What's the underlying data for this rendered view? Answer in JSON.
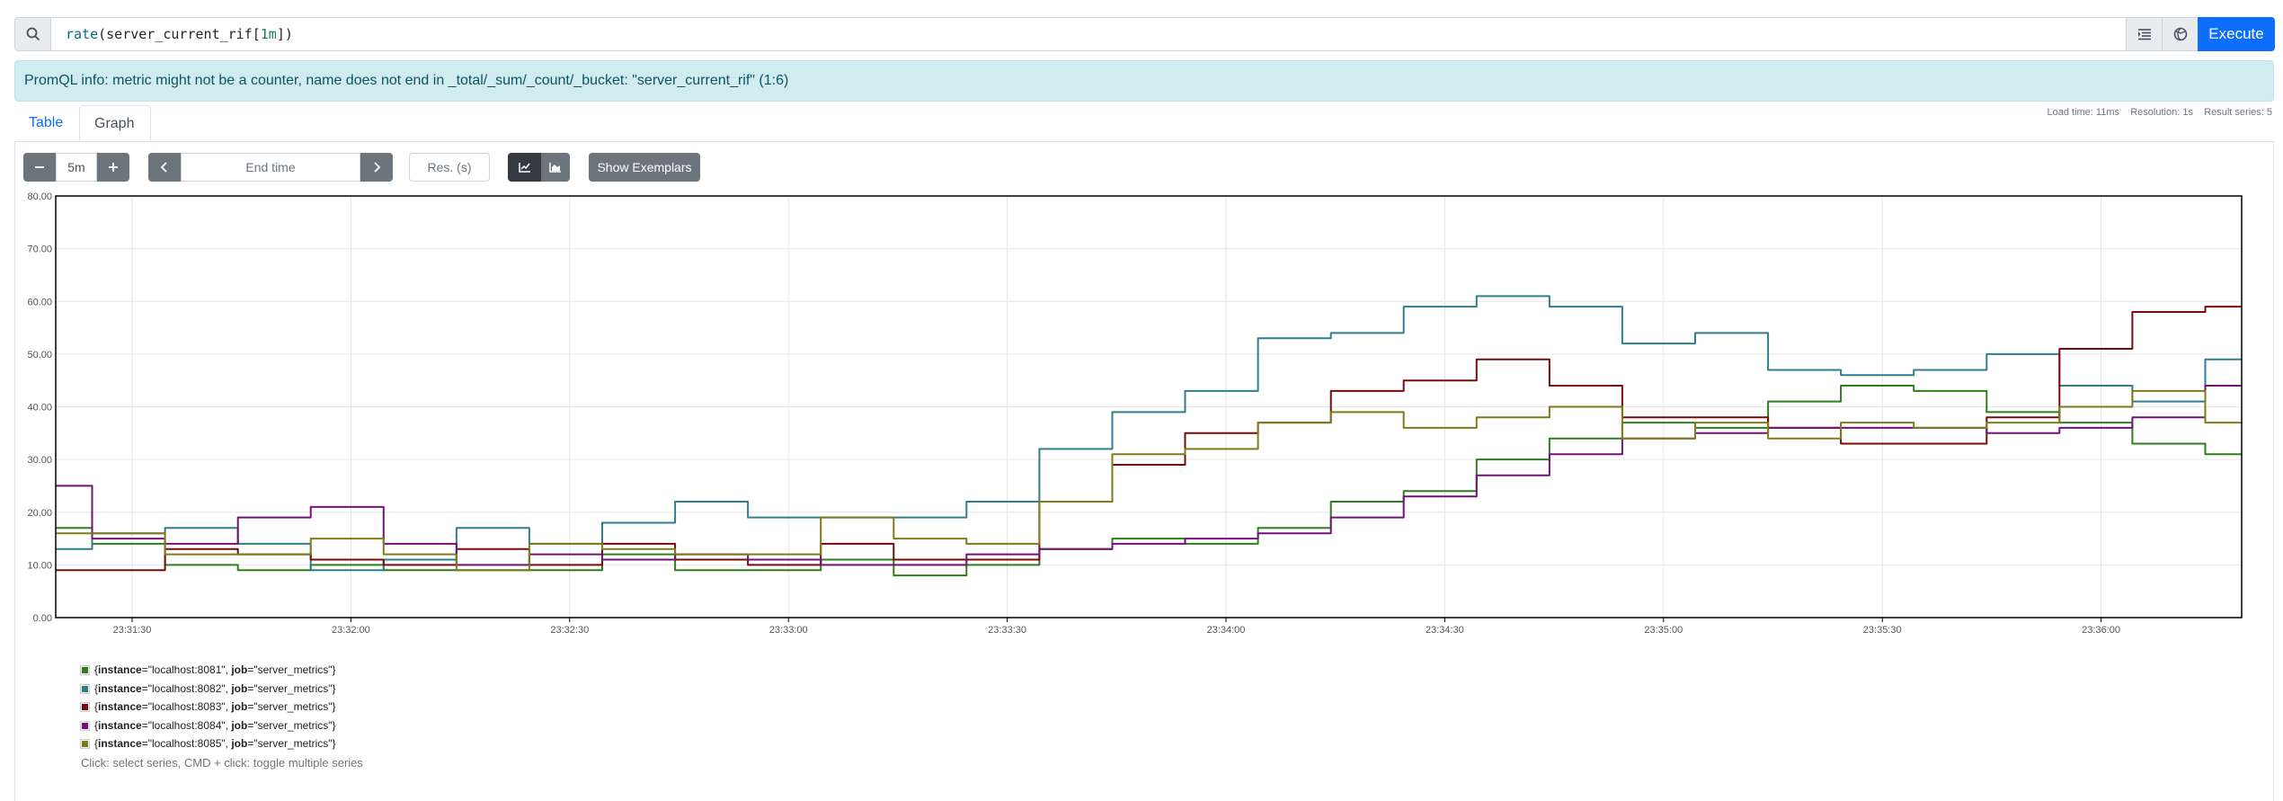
{
  "query": {
    "fn": "rate",
    "metric": "server_current_rif",
    "range": "1m",
    "execute_label": "Execute"
  },
  "alert": {
    "text": "PromQL info: metric might not be a counter, name does not end in _total/_sum/_count/_bucket: \"server_current_rif\" (1:6)"
  },
  "tabs": [
    {
      "label": "Table"
    },
    {
      "label": "Graph"
    }
  ],
  "stats": {
    "load_time": "Load time: 11ms",
    "resolution": "Resolution: 1s",
    "result_series": "Result series: 5"
  },
  "controls": {
    "range_value": "5m",
    "end_time_placeholder": "End time",
    "res_placeholder": "Res. (s)",
    "show_exemplars": "Show Exemplars"
  },
  "legend": {
    "items": [
      {
        "instance": "localhost:8081",
        "job": "server_metrics",
        "color": "#2f7d1c"
      },
      {
        "instance": "localhost:8082",
        "job": "server_metrics",
        "color": "#2f7f8a"
      },
      {
        "instance": "localhost:8083",
        "job": "server_metrics",
        "color": "#7a0a0a"
      },
      {
        "instance": "localhost:8084",
        "job": "server_metrics",
        "color": "#75107a"
      },
      {
        "instance": "localhost:8085",
        "job": "server_metrics",
        "color": "#7f7a1a"
      }
    ],
    "hint": "Click: select series, CMD + click: toggle multiple series"
  },
  "chart_data": {
    "type": "line",
    "x_ticks": [
      "23:31:30",
      "23:32:00",
      "23:32:30",
      "23:33:00",
      "23:33:30",
      "23:34:00",
      "23:34:30",
      "23:35:00",
      "23:35:30",
      "23:36:00"
    ],
    "y_ticks": [
      "0.00",
      "10.00",
      "20.00",
      "30.00",
      "40.00",
      "50.00",
      "60.00",
      "70.00",
      "80.00"
    ],
    "ylim": [
      0,
      80
    ],
    "x_range_seconds": [
      0,
      300
    ],
    "grid": true,
    "series": [
      {
        "name": "{instance=\"localhost:8081\", job=\"server_metrics\"}",
        "x": [
          0,
          10,
          20,
          30,
          40,
          50,
          60,
          70,
          80,
          90,
          100,
          110,
          120,
          130,
          140,
          150,
          160,
          170,
          180,
          190,
          200,
          210,
          220,
          230,
          240,
          250,
          260,
          270,
          280,
          290,
          300
        ],
        "values": [
          17,
          14,
          10,
          9,
          10,
          9,
          9,
          9,
          12,
          9,
          9,
          11,
          8,
          10,
          13,
          15,
          14,
          17,
          22,
          24,
          30,
          34,
          37,
          36,
          41,
          44,
          43,
          39,
          37,
          33,
          31
        ]
      },
      {
        "name": "{instance=\"localhost:8082\", job=\"server_metrics\"}",
        "x": [
          0,
          10,
          20,
          30,
          40,
          50,
          60,
          70,
          80,
          90,
          100,
          110,
          120,
          130,
          140,
          150,
          160,
          170,
          180,
          190,
          200,
          210,
          220,
          230,
          240,
          250,
          260,
          270,
          280,
          290,
          300
        ],
        "values": [
          13,
          16,
          17,
          14,
          9,
          11,
          17,
          14,
          18,
          22,
          19,
          19,
          19,
          22,
          32,
          39,
          43,
          53,
          54,
          59,
          61,
          59,
          52,
          54,
          47,
          46,
          47,
          50,
          44,
          41,
          49
        ]
      },
      {
        "name": "{instance=\"localhost:8083\", job=\"server_metrics\"}",
        "x": [
          0,
          10,
          20,
          30,
          40,
          50,
          60,
          70,
          80,
          90,
          100,
          110,
          120,
          130,
          140,
          150,
          160,
          170,
          180,
          190,
          200,
          210,
          220,
          230,
          240,
          250,
          260,
          270,
          280,
          290,
          300
        ],
        "values": [
          9,
          9,
          13,
          12,
          11,
          10,
          13,
          10,
          14,
          11,
          10,
          14,
          11,
          11,
          22,
          29,
          35,
          37,
          43,
          45,
          49,
          44,
          38,
          38,
          36,
          33,
          33,
          38,
          51,
          58,
          59
        ]
      },
      {
        "name": "{instance=\"localhost:8084\", job=\"server_metrics\"}",
        "x": [
          0,
          10,
          20,
          30,
          40,
          50,
          60,
          70,
          80,
          90,
          100,
          110,
          120,
          130,
          140,
          150,
          160,
          170,
          180,
          190,
          200,
          210,
          220,
          230,
          240,
          250,
          260,
          270,
          280,
          290,
          300
        ],
        "values": [
          25,
          15,
          14,
          19,
          21,
          14,
          10,
          12,
          11,
          12,
          11,
          10,
          10,
          12,
          13,
          14,
          15,
          16,
          19,
          23,
          27,
          31,
          34,
          35,
          36,
          36,
          36,
          35,
          36,
          38,
          44
        ]
      },
      {
        "name": "{instance=\"localhost:8085\", job=\"server_metrics\"}",
        "x": [
          0,
          10,
          20,
          30,
          40,
          50,
          60,
          70,
          80,
          90,
          100,
          110,
          120,
          130,
          140,
          150,
          160,
          170,
          180,
          190,
          200,
          210,
          220,
          230,
          240,
          250,
          260,
          270,
          280,
          290,
          300
        ],
        "values": [
          16,
          16,
          12,
          12,
          15,
          12,
          9,
          14,
          13,
          12,
          12,
          19,
          15,
          14,
          22,
          31,
          32,
          37,
          39,
          36,
          38,
          40,
          34,
          37,
          34,
          37,
          36,
          37,
          40,
          43,
          37
        ]
      }
    ]
  }
}
